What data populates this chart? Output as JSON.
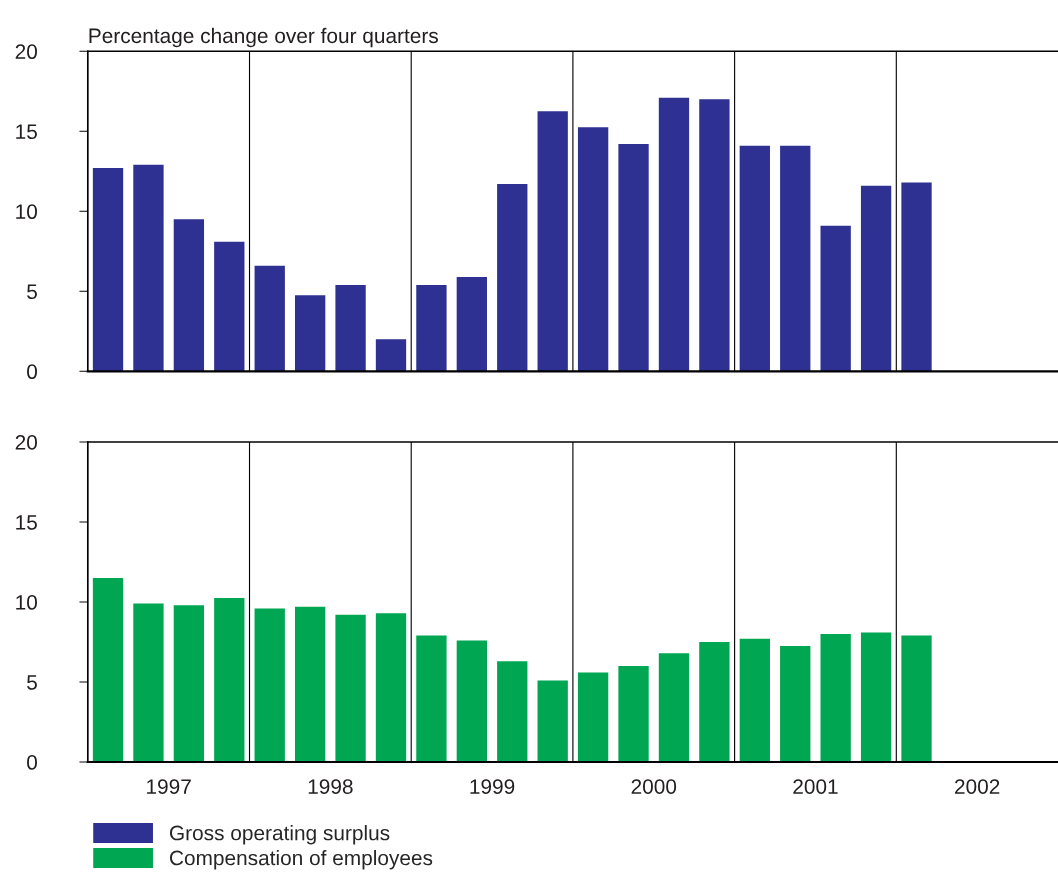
{
  "chart_data": [
    {
      "type": "bar",
      "title": "Percentage change over four quarters",
      "x": [
        1997.125,
        1997.375,
        1997.625,
        1997.875,
        1998.125,
        1998.375,
        1998.625,
        1998.875,
        1999.125,
        1999.375,
        1999.625,
        1999.875,
        2000.125,
        2000.375,
        2000.625,
        2000.875,
        2001.125,
        2001.375,
        2001.625,
        2001.875,
        2002.125
      ],
      "series": [
        {
          "name": "Gross operating surplus",
          "color": "#2e3192",
          "values": [
            12.7,
            12.9,
            9.5,
            8.1,
            6.6,
            4.75,
            5.4,
            2.0,
            5.4,
            5.9,
            11.7,
            16.25,
            15.25,
            14.2,
            17.1,
            17.0,
            14.1,
            14.1,
            9.1,
            11.6,
            11.8
          ]
        }
      ],
      "xlim": [
        1997,
        2003
      ],
      "ylim": [
        0,
        20
      ],
      "yticks": [
        0,
        5,
        10,
        15,
        20
      ],
      "tick_labels": "y",
      "legend": "bottom",
      "grid": false,
      "ref_lines": [
        {
          "axis": "x",
          "value": 1998,
          "color": "#000000"
        },
        {
          "axis": "x",
          "value": 1999,
          "color": "#000000"
        },
        {
          "axis": "x",
          "value": 2000,
          "color": "#000000"
        },
        {
          "axis": "x",
          "value": 2001,
          "color": "#000000"
        },
        {
          "axis": "x",
          "value": 2002,
          "color": "#000000"
        }
      ]
    },
    {
      "type": "bar",
      "x": [
        1997.125,
        1997.375,
        1997.625,
        1997.875,
        1998.125,
        1998.375,
        1998.625,
        1998.875,
        1999.125,
        1999.375,
        1999.625,
        1999.875,
        2000.125,
        2000.375,
        2000.625,
        2000.875,
        2001.125,
        2001.375,
        2001.625,
        2001.875,
        2002.125
      ],
      "series": [
        {
          "name": "Compensation of employees",
          "color": "#00a651",
          "values": [
            11.5,
            9.9,
            9.8,
            10.25,
            9.6,
            9.7,
            9.2,
            9.3,
            7.9,
            7.6,
            6.3,
            5.1,
            5.6,
            6.0,
            6.8,
            7.5,
            7.7,
            7.25,
            8.0,
            8.1,
            7.9
          ]
        }
      ],
      "xlim": [
        1997,
        2003
      ],
      "xticks": [
        {
          "value": 1997.5,
          "label": "1997"
        },
        {
          "value": 1998.5,
          "label": "1998"
        },
        {
          "value": 1999.5,
          "label": "1999"
        },
        {
          "value": 2000.5,
          "label": "2000"
        },
        {
          "value": 2001.5,
          "label": "2001"
        },
        {
          "value": 2002.5,
          "label": "2002"
        }
      ],
      "ylim": [
        0,
        20
      ],
      "yticks": [
        0,
        5,
        10,
        15,
        20
      ],
      "legend": "bottom",
      "grid": false,
      "ref_lines": [
        {
          "axis": "x",
          "value": 1998,
          "color": "#000000"
        },
        {
          "axis": "x",
          "value": 1999,
          "color": "#000000"
        },
        {
          "axis": "x",
          "value": 2000,
          "color": "#000000"
        },
        {
          "axis": "x",
          "value": 2001,
          "color": "#000000"
        },
        {
          "axis": "x",
          "value": 2002,
          "color": "#000000"
        }
      ]
    }
  ]
}
